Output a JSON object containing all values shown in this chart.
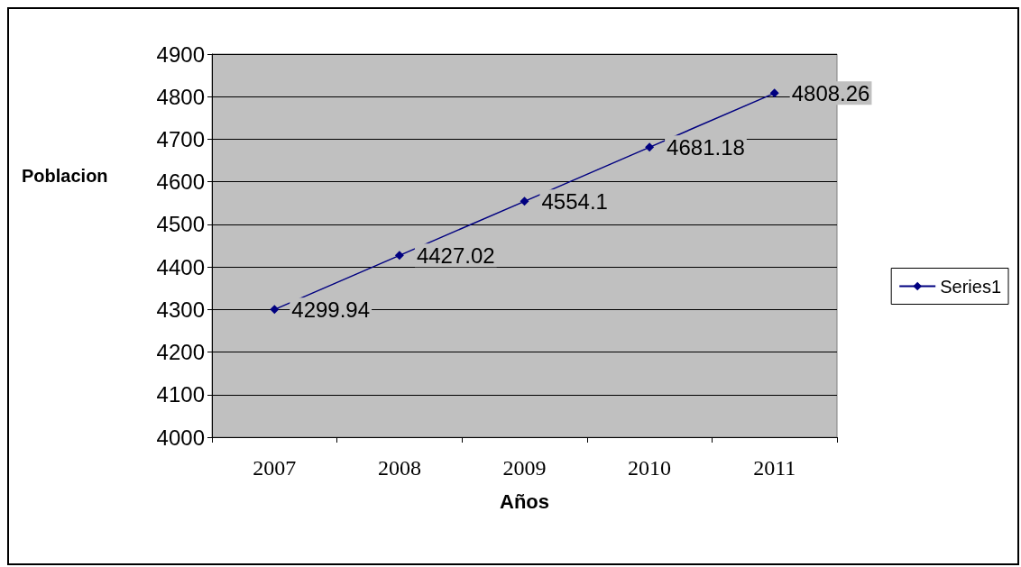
{
  "chart_data": {
    "type": "line",
    "xlabel": "Años",
    "ylabel": "Poblacion",
    "categories": [
      "2007",
      "2008",
      "2009",
      "2010",
      "2011"
    ],
    "series": [
      {
        "name": "Series1",
        "color": "#000080",
        "values": [
          4299.94,
          4427.02,
          4554.1,
          4681.18,
          4808.26
        ]
      }
    ],
    "ylim": [
      4000,
      4900
    ],
    "yticks": [
      4000,
      4100,
      4200,
      4300,
      4400,
      4500,
      4600,
      4700,
      4800,
      4900
    ],
    "grid": "y",
    "legend": "right",
    "marker": "diamond",
    "line_style": "solid",
    "data_labels": true
  }
}
